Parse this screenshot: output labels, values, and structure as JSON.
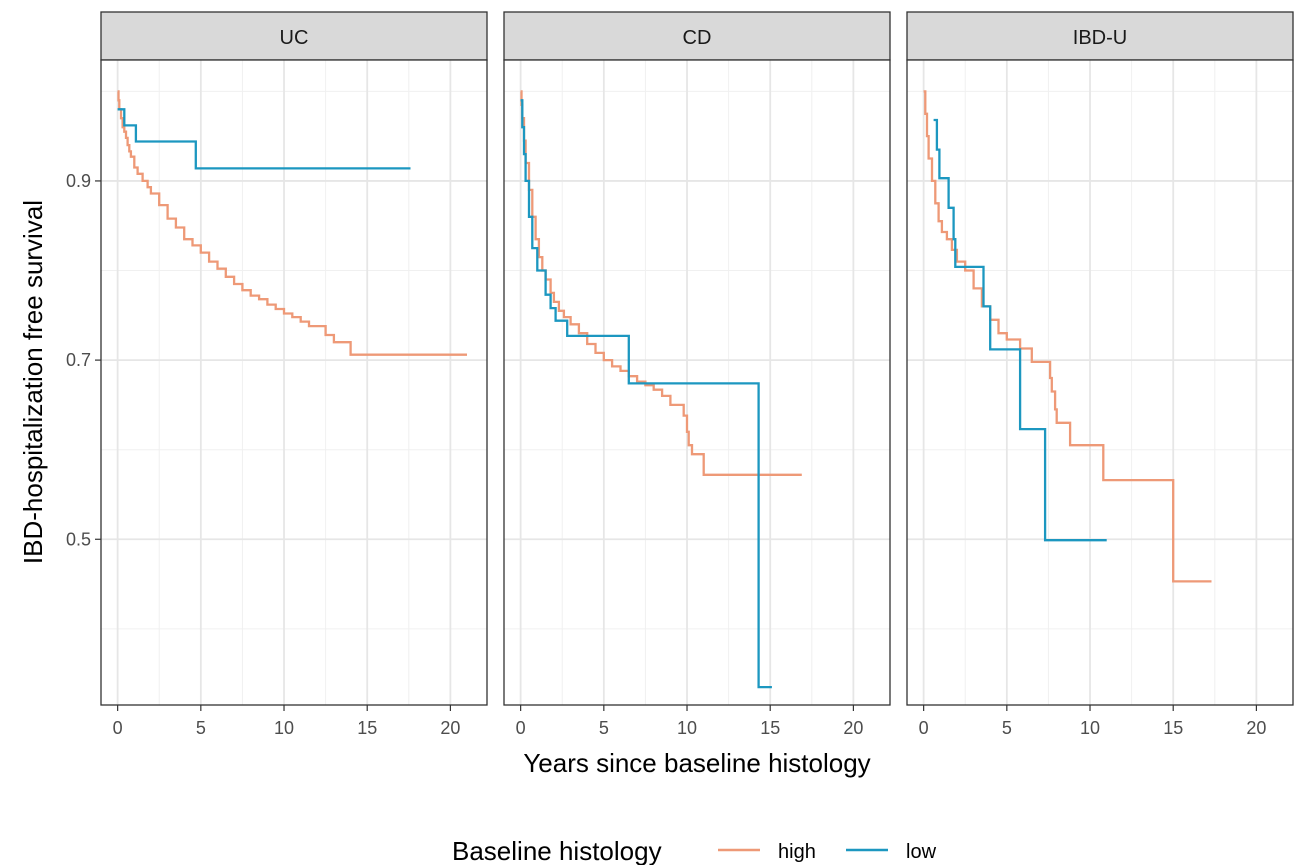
{
  "chart_data": {
    "type": "line",
    "step": true,
    "facet_by": "disease",
    "panels": [
      "UC",
      "CD",
      "IBD-U"
    ],
    "xlabel": "Years since baseline histology",
    "ylabel": "IBD-hospitalization free survival",
    "xlim": [
      -1,
      22.2
    ],
    "ylim": [
      0.315,
      1.035
    ],
    "x_ticks": [
      0,
      5,
      10,
      15,
      20
    ],
    "x_tick_labels": [
      "0",
      "5",
      "10",
      "15",
      "20"
    ],
    "y_ticks": [
      0.5,
      0.7,
      0.9
    ],
    "y_tick_labels": [
      "0.5",
      "0.7",
      "0.9"
    ],
    "y_minor_ticks": [
      0.4,
      0.6,
      0.8,
      1.0
    ],
    "grid": true,
    "legend": {
      "title": "Baseline histology",
      "position": "bottom",
      "items": [
        "high",
        "low"
      ]
    },
    "colors": {
      "high": "#EE9977",
      "low": "#1C97C0"
    },
    "series": [
      {
        "panel": "UC",
        "group": "high",
        "points": [
          [
            0,
            1.0
          ],
          [
            0.05,
            0.99
          ],
          [
            0.1,
            0.98
          ],
          [
            0.2,
            0.97
          ],
          [
            0.3,
            0.96
          ],
          [
            0.4,
            0.955
          ],
          [
            0.5,
            0.948
          ],
          [
            0.6,
            0.94
          ],
          [
            0.7,
            0.933
          ],
          [
            0.8,
            0.927
          ],
          [
            1.0,
            0.915
          ],
          [
            1.2,
            0.908
          ],
          [
            1.5,
            0.9
          ],
          [
            1.8,
            0.893
          ],
          [
            2.0,
            0.886
          ],
          [
            2.5,
            0.873
          ],
          [
            3.0,
            0.858
          ],
          [
            3.5,
            0.848
          ],
          [
            4.0,
            0.835
          ],
          [
            4.5,
            0.828
          ],
          [
            5.0,
            0.82
          ],
          [
            5.5,
            0.81
          ],
          [
            6.0,
            0.802
          ],
          [
            6.5,
            0.793
          ],
          [
            7.0,
            0.785
          ],
          [
            7.5,
            0.778
          ],
          [
            8.0,
            0.772
          ],
          [
            8.5,
            0.768
          ],
          [
            9.0,
            0.762
          ],
          [
            9.5,
            0.757
          ],
          [
            10.0,
            0.752
          ],
          [
            10.5,
            0.748
          ],
          [
            11.0,
            0.743
          ],
          [
            11.5,
            0.738
          ],
          [
            12.5,
            0.728
          ],
          [
            13.0,
            0.72
          ],
          [
            14.0,
            0.706
          ],
          [
            21.0,
            0.706
          ]
        ]
      },
      {
        "panel": "UC",
        "group": "low",
        "points": [
          [
            0.0,
            0.98
          ],
          [
            0.4,
            0.98
          ],
          [
            0.4,
            0.962
          ],
          [
            1.1,
            0.962
          ],
          [
            1.1,
            0.944
          ],
          [
            4.7,
            0.944
          ],
          [
            4.7,
            0.914
          ],
          [
            17.6,
            0.914
          ]
        ]
      },
      {
        "panel": "CD",
        "group": "high",
        "points": [
          [
            0,
            1.0
          ],
          [
            0.05,
            0.985
          ],
          [
            0.1,
            0.97
          ],
          [
            0.2,
            0.945
          ],
          [
            0.3,
            0.92
          ],
          [
            0.5,
            0.89
          ],
          [
            0.7,
            0.86
          ],
          [
            0.9,
            0.835
          ],
          [
            1.1,
            0.815
          ],
          [
            1.3,
            0.8
          ],
          [
            1.5,
            0.79
          ],
          [
            1.8,
            0.775
          ],
          [
            2.0,
            0.765
          ],
          [
            2.3,
            0.755
          ],
          [
            2.6,
            0.748
          ],
          [
            3.0,
            0.74
          ],
          [
            3.5,
            0.73
          ],
          [
            4.0,
            0.718
          ],
          [
            4.5,
            0.708
          ],
          [
            5.0,
            0.7
          ],
          [
            5.5,
            0.693
          ],
          [
            6.0,
            0.688
          ],
          [
            6.5,
            0.682
          ],
          [
            7.0,
            0.676
          ],
          [
            7.5,
            0.672
          ],
          [
            8.0,
            0.667
          ],
          [
            8.5,
            0.66
          ],
          [
            9.0,
            0.65
          ],
          [
            9.5,
            0.65
          ],
          [
            9.8,
            0.638
          ],
          [
            10.0,
            0.62
          ],
          [
            10.1,
            0.605
          ],
          [
            10.3,
            0.595
          ],
          [
            11.0,
            0.572
          ],
          [
            16.9,
            0.572
          ]
        ]
      },
      {
        "panel": "CD",
        "group": "low",
        "points": [
          [
            0.0,
            0.99
          ],
          [
            0.1,
            0.99
          ],
          [
            0.1,
            0.96
          ],
          [
            0.2,
            0.96
          ],
          [
            0.2,
            0.93
          ],
          [
            0.3,
            0.93
          ],
          [
            0.3,
            0.9
          ],
          [
            0.5,
            0.9
          ],
          [
            0.5,
            0.86
          ],
          [
            0.7,
            0.86
          ],
          [
            0.7,
            0.825
          ],
          [
            1.0,
            0.825
          ],
          [
            1.0,
            0.8
          ],
          [
            1.5,
            0.8
          ],
          [
            1.5,
            0.773
          ],
          [
            1.8,
            0.773
          ],
          [
            1.8,
            0.758
          ],
          [
            2.1,
            0.758
          ],
          [
            2.1,
            0.744
          ],
          [
            2.8,
            0.744
          ],
          [
            2.8,
            0.727
          ],
          [
            6.5,
            0.727
          ],
          [
            6.5,
            0.674
          ],
          [
            14.3,
            0.674
          ],
          [
            14.3,
            0.335
          ],
          [
            15.1,
            0.335
          ]
        ]
      },
      {
        "panel": "IBD-U",
        "group": "high",
        "points": [
          [
            0,
            1.0
          ],
          [
            0.1,
            0.975
          ],
          [
            0.2,
            0.95
          ],
          [
            0.3,
            0.925
          ],
          [
            0.5,
            0.9
          ],
          [
            0.7,
            0.875
          ],
          [
            0.9,
            0.855
          ],
          [
            1.1,
            0.843
          ],
          [
            1.4,
            0.835
          ],
          [
            1.7,
            0.823
          ],
          [
            2.0,
            0.81
          ],
          [
            2.5,
            0.8
          ],
          [
            3.0,
            0.78
          ],
          [
            3.5,
            0.76
          ],
          [
            4.0,
            0.745
          ],
          [
            4.5,
            0.73
          ],
          [
            5.0,
            0.723
          ],
          [
            5.5,
            0.723
          ],
          [
            5.8,
            0.713
          ],
          [
            6.5,
            0.698
          ],
          [
            7.5,
            0.698
          ],
          [
            7.6,
            0.68
          ],
          [
            7.7,
            0.665
          ],
          [
            7.9,
            0.645
          ],
          [
            8.0,
            0.63
          ],
          [
            8.8,
            0.63
          ],
          [
            8.8,
            0.605
          ],
          [
            10.8,
            0.605
          ],
          [
            10.8,
            0.566
          ],
          [
            15.0,
            0.566
          ],
          [
            15.0,
            0.453
          ],
          [
            17.3,
            0.453
          ]
        ]
      },
      {
        "panel": "IBD-U",
        "group": "low",
        "points": [
          [
            0.6,
            0.968
          ],
          [
            0.8,
            0.968
          ],
          [
            0.8,
            0.935
          ],
          [
            0.95,
            0.935
          ],
          [
            0.95,
            0.903
          ],
          [
            1.5,
            0.903
          ],
          [
            1.5,
            0.87
          ],
          [
            1.8,
            0.87
          ],
          [
            1.8,
            0.835
          ],
          [
            1.9,
            0.835
          ],
          [
            1.9,
            0.804
          ],
          [
            3.6,
            0.804
          ],
          [
            3.6,
            0.76
          ],
          [
            4.0,
            0.76
          ],
          [
            4.0,
            0.712
          ],
          [
            5.8,
            0.712
          ],
          [
            5.8,
            0.623
          ],
          [
            7.3,
            0.623
          ],
          [
            7.3,
            0.499
          ],
          [
            11.0,
            0.499
          ]
        ]
      }
    ]
  }
}
